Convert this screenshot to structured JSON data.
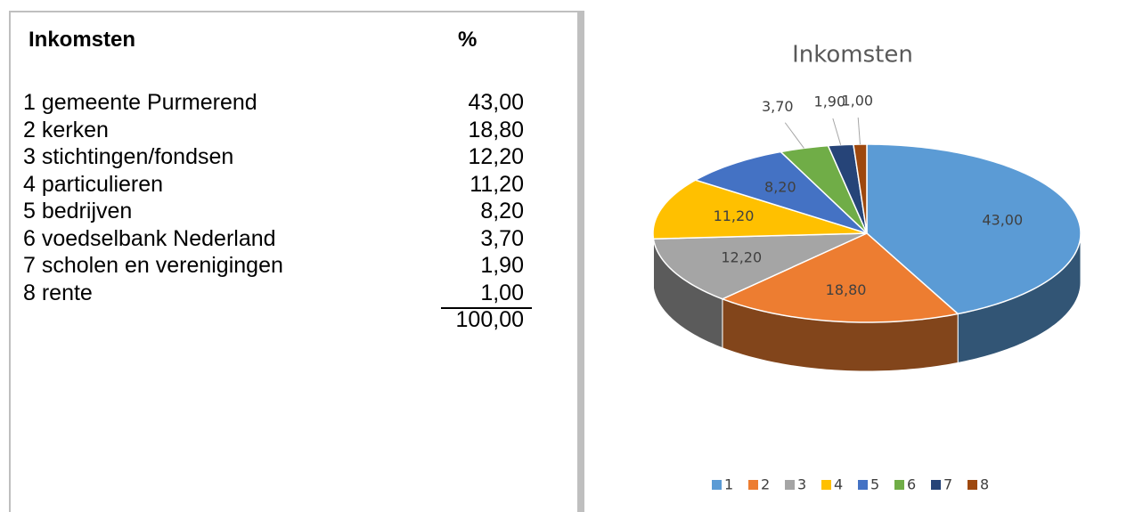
{
  "table": {
    "title": "Inkomsten",
    "unit": "%",
    "rows": [
      [
        "1 gemeente Purmerend",
        "43,00"
      ],
      [
        "2 kerken",
        "18,80"
      ],
      [
        "3 stichtingen/fondsen",
        "12,20"
      ],
      [
        "4 particulieren",
        "11,20"
      ],
      [
        "5 bedrijven",
        "8,20"
      ],
      [
        "6 voedselbank Nederland",
        "3,70"
      ],
      [
        "7 scholen en verenigingen",
        "1,90"
      ],
      [
        "8 rente",
        "1,00"
      ]
    ],
    "total": "100,00"
  },
  "chart_data": {
    "type": "pie",
    "title": "Inkomsten",
    "categories": [
      "1",
      "2",
      "3",
      "4",
      "5",
      "6",
      "7",
      "8"
    ],
    "values": [
      43,
      18.8,
      12.2,
      11.2,
      8.2,
      3.7,
      1.9,
      1.0
    ],
    "value_labels": [
      "43,00",
      "18,80",
      "12,20",
      "11,20",
      "8,20",
      "3,70",
      "1,90",
      "1,00"
    ],
    "colors": [
      "#5b9bd5",
      "#ed7d31",
      "#a5a5a5",
      "#ffc000",
      "#4472c4",
      "#70ad47",
      "#264478",
      "#9e480e"
    ],
    "legend": "bottom"
  }
}
